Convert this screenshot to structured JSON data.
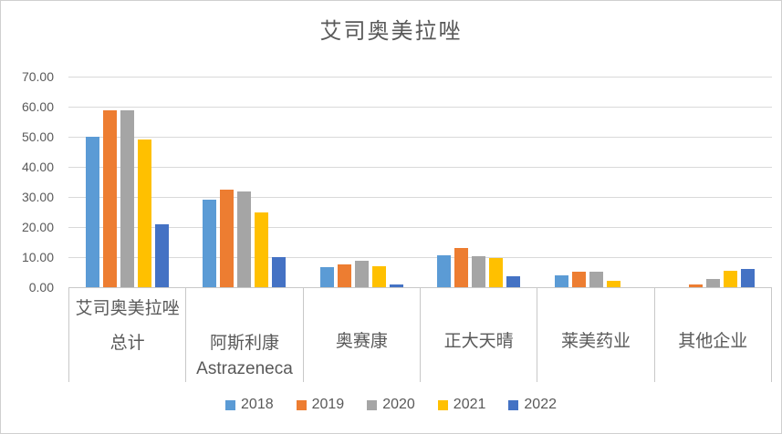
{
  "title": "艾司奥美拉唑",
  "chart_data": {
    "type": "bar",
    "title": "艾司奥美拉唑",
    "xlabel": "",
    "ylabel": "",
    "ylim": [
      0,
      70
    ],
    "ytick_step": 10,
    "yticks": [
      "70.00",
      "60.00",
      "50.00",
      "40.00",
      "30.00",
      "20.00",
      "10.00",
      "0.00"
    ],
    "grid": true,
    "legend_position": "bottom",
    "categories": [
      {
        "lines": [
          "艾司奥美拉唑",
          "总计"
        ]
      },
      {
        "lines": [
          "阿斯利康",
          "Astrazeneca"
        ]
      },
      {
        "lines": [
          "奥赛康"
        ]
      },
      {
        "lines": [
          "正大天晴"
        ]
      },
      {
        "lines": [
          "莱美药业"
        ]
      },
      {
        "lines": [
          "其他企业"
        ]
      }
    ],
    "series": [
      {
        "name": "2018",
        "color": "#5B9BD5",
        "values": [
          50.0,
          29.0,
          6.6,
          10.5,
          3.9,
          0
        ]
      },
      {
        "name": "2019",
        "color": "#ED7D31",
        "values": [
          58.8,
          32.4,
          7.6,
          13.0,
          5.0,
          0.8
        ]
      },
      {
        "name": "2020",
        "color": "#A5A5A5",
        "values": [
          58.7,
          31.7,
          8.8,
          10.2,
          5.2,
          2.7
        ]
      },
      {
        "name": "2021",
        "color": "#FFC000",
        "values": [
          49.0,
          24.8,
          7.0,
          9.7,
          2.0,
          5.5
        ]
      },
      {
        "name": "2022",
        "color": "#4472C4",
        "values": [
          21.0,
          10.0,
          1.0,
          3.5,
          0,
          6.0
        ]
      }
    ]
  },
  "colors": {
    "text": "#595959",
    "gridline": "#D9D9D9",
    "axis": "#C8C8C8",
    "background": "#FFFFFF"
  }
}
